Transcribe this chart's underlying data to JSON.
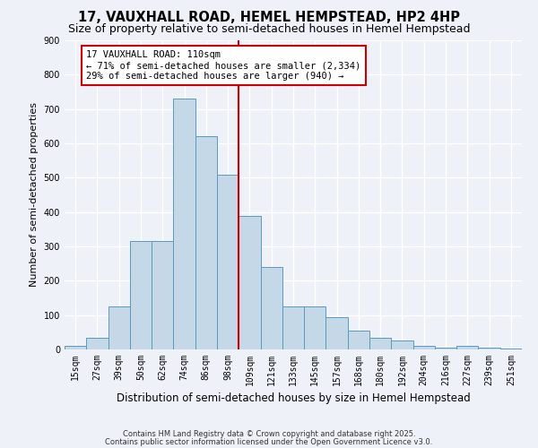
{
  "title": "17, VAUXHALL ROAD, HEMEL HEMPSTEAD, HP2 4HP",
  "subtitle": "Size of property relative to semi-detached houses in Hemel Hempstead",
  "xlabel": "Distribution of semi-detached houses by size in Hemel Hempstead",
  "ylabel": "Number of semi-detached properties",
  "categories": [
    "15sqm",
    "27sqm",
    "39sqm",
    "50sqm",
    "62sqm",
    "74sqm",
    "86sqm",
    "98sqm",
    "109sqm",
    "121sqm",
    "133sqm",
    "145sqm",
    "157sqm",
    "168sqm",
    "180sqm",
    "192sqm",
    "204sqm",
    "216sqm",
    "227sqm",
    "239sqm",
    "251sqm"
  ],
  "values": [
    10,
    35,
    125,
    315,
    315,
    730,
    620,
    510,
    390,
    240,
    125,
    125,
    95,
    55,
    35,
    25,
    10,
    5,
    10,
    5,
    2
  ],
  "bar_color": "#c5d8e8",
  "bar_edge_color": "#5a9abf",
  "background_color": "#eef2f8",
  "grid_color": "#ffffff",
  "ylim": [
    0,
    900
  ],
  "yticks": [
    0,
    100,
    200,
    300,
    400,
    500,
    600,
    700,
    800,
    900
  ],
  "vline_index": 8,
  "vline_color": "#cc0000",
  "annotation_title": "17 VAUXHALL ROAD: 110sqm",
  "annotation_line1": "← 71% of semi-detached houses are smaller (2,334)",
  "annotation_line2": "29% of semi-detached houses are larger (940) →",
  "annotation_box_color": "#cc0000",
  "footer_line1": "Contains HM Land Registry data © Crown copyright and database right 2025.",
  "footer_line2": "Contains public sector information licensed under the Open Government Licence v3.0.",
  "title_fontsize": 10.5,
  "subtitle_fontsize": 9,
  "xlabel_fontsize": 8.5,
  "ylabel_fontsize": 8,
  "tick_fontsize": 7,
  "annotation_fontsize": 7.5,
  "footer_fontsize": 6
}
